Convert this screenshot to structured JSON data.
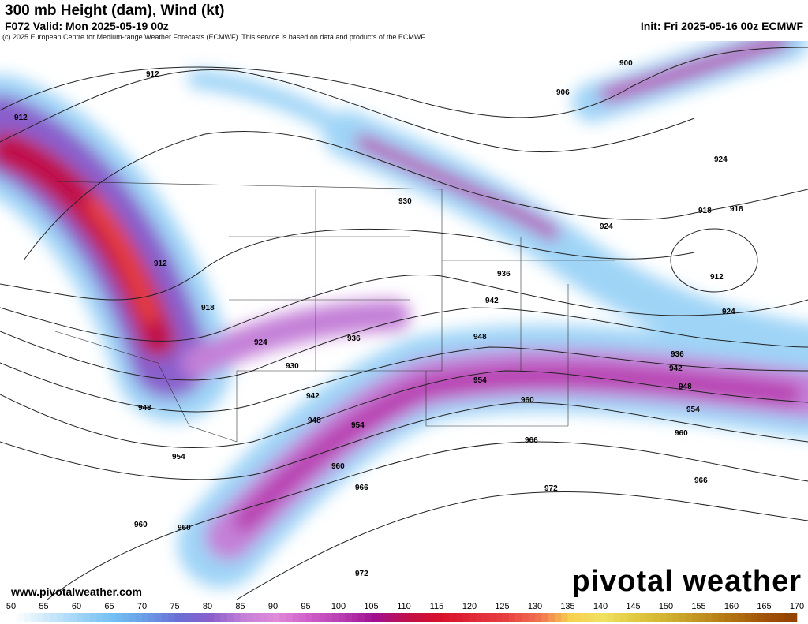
{
  "header": {
    "title": "300 mb Height (dam), Wind (kt)",
    "valid": "F072 Valid: Mon 2025-05-19 00z",
    "init": "Init: Fri 2025-05-16 00z ECMWF",
    "copyright": "(c) 2025 European Centre for Medium-range Weather Forecasts (ECMWF). This service is based on data and products of the ECMWF."
  },
  "footer": {
    "website": "www.pivotalweather.com",
    "logo": "pivotal weather"
  },
  "colorbar": {
    "ticks": [
      "50",
      "55",
      "60",
      "65",
      "70",
      "75",
      "80",
      "85",
      "90",
      "95",
      "100",
      "105",
      "110",
      "115",
      "120",
      "125",
      "130",
      "135",
      "140",
      "145",
      "150",
      "155",
      "160",
      "165",
      "170"
    ],
    "colors": [
      "#ffffff",
      "#cfe9fb",
      "#9fd4f7",
      "#74c0f4",
      "#6a9de6",
      "#6a6fd6",
      "#8a5fcc",
      "#c480d8",
      "#e08ad8",
      "#d05ec8",
      "#b83db0",
      "#a01090",
      "#c0104a",
      "#d8102a",
      "#e02838",
      "#e84040",
      "#f07050",
      "#f8d050",
      "#f0e060",
      "#e0c840",
      "#d0b030",
      "#c09020",
      "#b07010",
      "#a05008",
      "#904000"
    ]
  },
  "contour_labels": [
    "912",
    "918",
    "924",
    "930",
    "936",
    "942",
    "948",
    "954",
    "960",
    "966",
    "972",
    "900",
    "906"
  ],
  "map": {
    "field": "300 mb wind speed (kt) with geopotential height contours (dam) and wind barbs"
  }
}
